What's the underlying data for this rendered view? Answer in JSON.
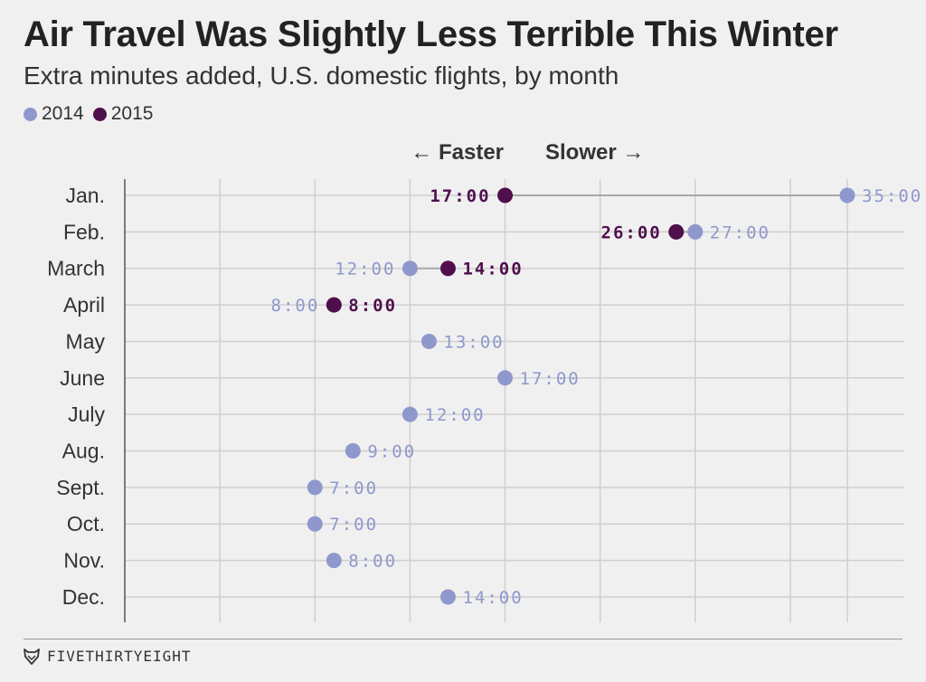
{
  "chart_data": {
    "type": "scatter",
    "title": "Air Travel Was Slightly Less Terrible This Winter",
    "subtitle": "Extra minutes added, U.S. domestic flights, by month",
    "direction_labels": {
      "left": "← Faster",
      "right": "Slower →"
    },
    "categories": [
      "Jan.",
      "Feb.",
      "March",
      "April",
      "May",
      "June",
      "July",
      "Aug.",
      "Sept.",
      "Oct.",
      "Nov.",
      "Dec."
    ],
    "xlim": [
      -3,
      35
    ],
    "x_gridlines": [
      -3,
      2,
      7,
      12,
      17,
      22,
      27,
      32,
      35
    ],
    "grid": true,
    "series": [
      {
        "name": "2014",
        "color": "#8e98cc",
        "values": [
          35,
          27,
          12,
          8,
          13,
          17,
          12,
          9,
          7,
          7,
          8,
          14
        ],
        "labels": [
          "35:00",
          "27:00",
          "12:00",
          "8:00",
          "13:00",
          "17:00",
          "12:00",
          "9:00",
          "7:00",
          "7:00",
          "8:00",
          "14:00"
        ]
      },
      {
        "name": "2015",
        "color": "#4f0f4c",
        "values": [
          17,
          26,
          14,
          8,
          null,
          null,
          null,
          null,
          null,
          null,
          null,
          null
        ],
        "labels": [
          "17:00",
          "26:00",
          "14:00",
          "8:00",
          null,
          null,
          null,
          null,
          null,
          null,
          null,
          null
        ]
      }
    ]
  },
  "brand": {
    "name": "FIVETHIRTYEIGHT",
    "logo_icon": "fox-icon"
  }
}
